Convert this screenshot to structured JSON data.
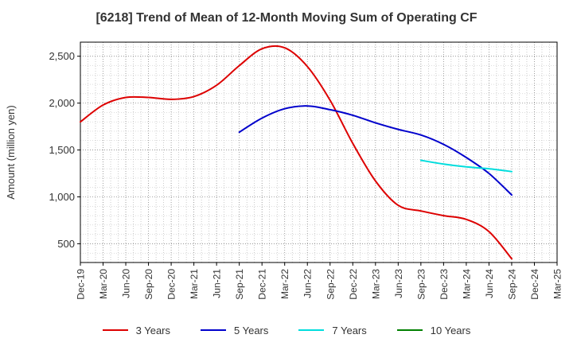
{
  "chart_data": {
    "type": "line",
    "title": "[6218]  Trend of Mean of 12-Month Moving Sum of Operating CF",
    "xlabel": "",
    "ylabel": "Amount (million yen)",
    "ylim": [
      300,
      2650
    ],
    "yticks": [
      500,
      1000,
      1500,
      2000,
      2500
    ],
    "ytick_labels": [
      "500",
      "1,000",
      "1,500",
      "2,000",
      "2,500"
    ],
    "categories": [
      "Dec-19",
      "Mar-20",
      "Jun-20",
      "Sep-20",
      "Dec-20",
      "Mar-21",
      "Jun-21",
      "Sep-21",
      "Dec-21",
      "Mar-22",
      "Jun-22",
      "Sep-22",
      "Dec-22",
      "Mar-23",
      "Jun-23",
      "Sep-23",
      "Dec-23",
      "Mar-24",
      "Jun-24",
      "Sep-24",
      "Dec-24",
      "Mar-25"
    ],
    "grid": true,
    "legend_position": "bottom",
    "series": [
      {
        "name": "3 Years",
        "color": "#dd0000",
        "values": [
          1800,
          1980,
          2060,
          2060,
          2040,
          2070,
          2190,
          2400,
          2580,
          2590,
          2390,
          2030,
          1570,
          1170,
          910,
          850,
          800,
          760,
          630,
          340,
          null,
          null
        ]
      },
      {
        "name": "5 Years",
        "color": "#0000cc",
        "values": [
          null,
          null,
          null,
          null,
          null,
          null,
          null,
          1690,
          1840,
          1940,
          1970,
          1930,
          1870,
          1790,
          1720,
          1660,
          1560,
          1420,
          1250,
          1020,
          null,
          null
        ]
      },
      {
        "name": "7 Years",
        "color": "#00dddd",
        "values": [
          null,
          null,
          null,
          null,
          null,
          null,
          null,
          null,
          null,
          null,
          null,
          null,
          null,
          null,
          null,
          1390,
          1350,
          1320,
          1300,
          1270,
          null,
          null
        ]
      },
      {
        "name": "10 Years",
        "color": "#008000",
        "values": [
          null,
          null,
          null,
          null,
          null,
          null,
          null,
          null,
          null,
          null,
          null,
          null,
          null,
          null,
          null,
          null,
          null,
          null,
          null,
          null,
          null,
          null
        ]
      }
    ]
  }
}
